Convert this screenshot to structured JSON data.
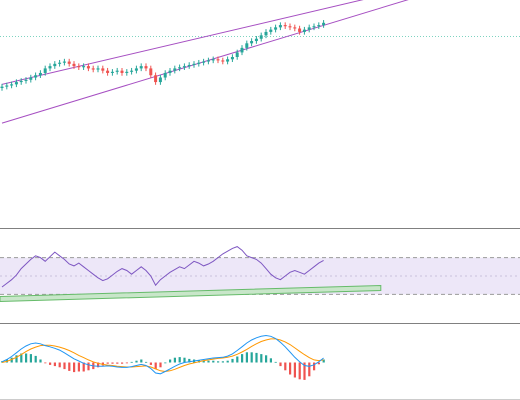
{
  "colors": {
    "background": "#ffffff",
    "bull": "#26a69a",
    "bear": "#ef5350",
    "channel": "#a64fc2",
    "rsi_line": "#7e57c2",
    "rsi_band_fill": "#ede7f8",
    "rsi_band_border": "#9a9a9a",
    "trend_fill": "#c8e6c9",
    "trend_border": "#66bb6a",
    "macd_line": "#2196f3",
    "signal_line": "#ff9800",
    "hist_pos": "#26a69a",
    "hist_neg": "#ef5350",
    "pane_divider": "#808080",
    "price_ref_line": "#7dd3c0"
  },
  "chart_data": [
    {
      "type": "candlestick",
      "pane": "price",
      "x_count": 68,
      "ylim": [
        0,
        100
      ],
      "reference_level": 84,
      "close": [
        62,
        62.5,
        63,
        64,
        64.5,
        65,
        66,
        67,
        68,
        70,
        71,
        72,
        72.5,
        73,
        72,
        71,
        70.5,
        71,
        70,
        69.5,
        70,
        69,
        68,
        68.5,
        69,
        68,
        68.5,
        69,
        70,
        71,
        70,
        67,
        64,
        66,
        68,
        69,
        70,
        70.5,
        71,
        71.5,
        72,
        72.5,
        73,
        73.5,
        74,
        73.5,
        73,
        74,
        75,
        77,
        79,
        81,
        82,
        83,
        84.5,
        86,
        87,
        88,
        89,
        88.5,
        88,
        87.5,
        86,
        87,
        88,
        88.5,
        89,
        90
      ],
      "channel_upper": [
        [
          0,
          63
        ],
        [
          85,
          105
        ]
      ],
      "channel_lower": [
        [
          0,
          46
        ],
        [
          100,
          110
        ]
      ]
    },
    {
      "type": "line",
      "pane": "rsi",
      "ylim": [
        0,
        100
      ],
      "band": [
        30,
        70
      ],
      "values": [
        38,
        42,
        46,
        51,
        58,
        63,
        68,
        72,
        70,
        66,
        71,
        76,
        72,
        68,
        63,
        61,
        64,
        60,
        56,
        52,
        48,
        45,
        47,
        51,
        55,
        58,
        56,
        52,
        56,
        60,
        56,
        50,
        40,
        46,
        50,
        54,
        57,
        60,
        58,
        62,
        66,
        64,
        61,
        63,
        66,
        70,
        74,
        77,
        80,
        82,
        78,
        72,
        70,
        68,
        64,
        58,
        52,
        48,
        46,
        50,
        54,
        56,
        54,
        52,
        56,
        60,
        64,
        67
      ],
      "trendline": [
        [
          0,
          25
        ],
        [
          66,
          37
        ]
      ]
    },
    {
      "type": "macd",
      "pane": "macd",
      "ylim": [
        -1,
        1
      ],
      "macd": [
        0.02,
        0.08,
        0.16,
        0.26,
        0.36,
        0.44,
        0.5,
        0.52,
        0.5,
        0.45,
        0.42,
        0.38,
        0.33,
        0.26,
        0.18,
        0.1,
        0.04,
        -0.02,
        -0.06,
        -0.09,
        -0.1,
        -0.1,
        -0.09,
        -0.1,
        -0.12,
        -0.13,
        -0.13,
        -0.11,
        -0.08,
        -0.05,
        -0.08,
        -0.16,
        -0.28,
        -0.3,
        -0.24,
        -0.17,
        -0.1,
        -0.04,
        0,
        0.02,
        0.04,
        0.06,
        0.08,
        0.1,
        0.12,
        0.13,
        0.14,
        0.17,
        0.23,
        0.32,
        0.42,
        0.52,
        0.6,
        0.66,
        0.7,
        0.72,
        0.7,
        0.64,
        0.54,
        0.42,
        0.28,
        0.14,
        0.02,
        -0.08,
        -0.1,
        -0.06,
        0.02,
        0.12
      ],
      "signal": [
        0,
        0.03,
        0.08,
        0.14,
        0.21,
        0.29,
        0.36,
        0.41,
        0.45,
        0.46,
        0.46,
        0.44,
        0.41,
        0.37,
        0.32,
        0.26,
        0.19,
        0.13,
        0.07,
        0.02,
        -0.02,
        -0.05,
        -0.07,
        -0.08,
        -0.1,
        -0.11,
        -0.12,
        -0.12,
        -0.11,
        -0.1,
        -0.09,
        -0.12,
        -0.17,
        -0.22,
        -0.24,
        -0.22,
        -0.18,
        -0.13,
        -0.08,
        -0.04,
        -0.01,
        0.02,
        0.05,
        0.07,
        0.09,
        0.11,
        0.12,
        0.14,
        0.17,
        0.22,
        0.28,
        0.35,
        0.43,
        0.5,
        0.56,
        0.6,
        0.63,
        0.63,
        0.6,
        0.55,
        0.48,
        0.39,
        0.3,
        0.21,
        0.13,
        0.07,
        0.05,
        0.07
      ]
    }
  ]
}
